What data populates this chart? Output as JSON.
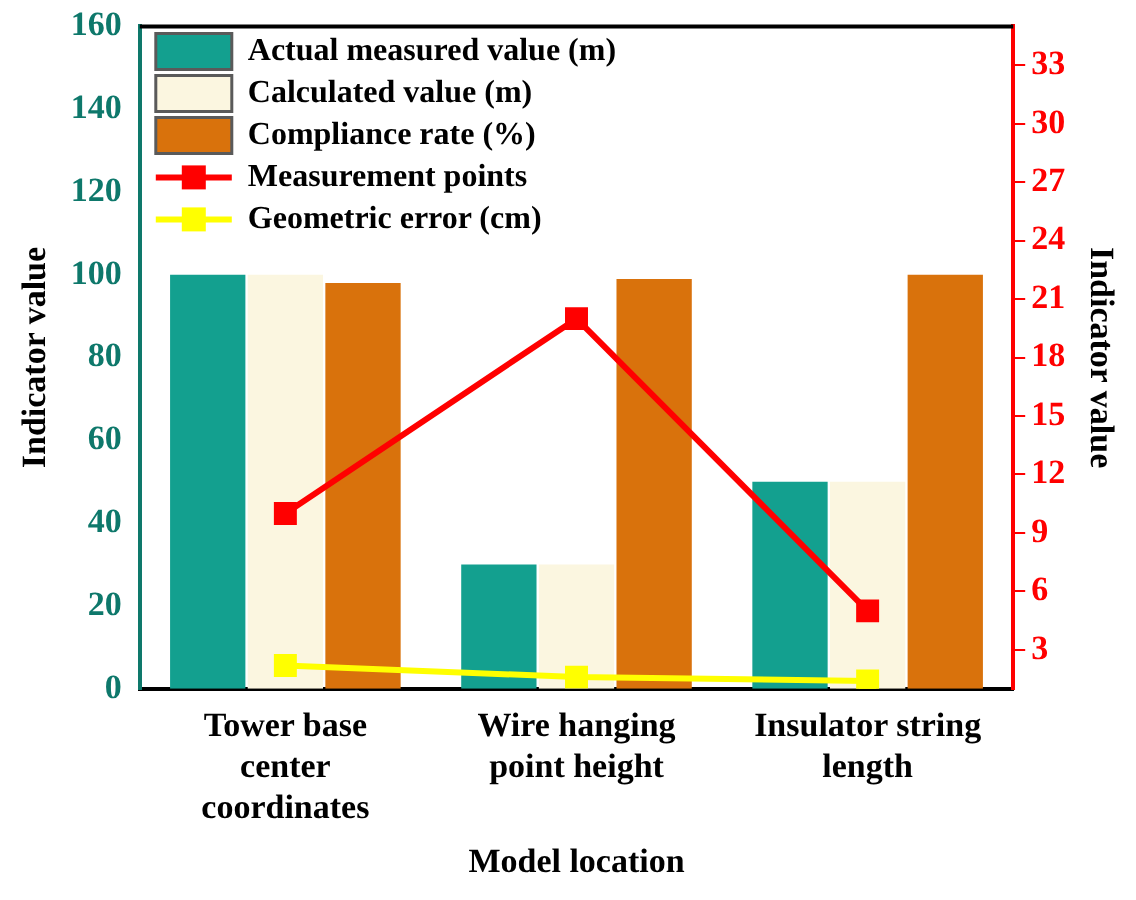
{
  "chart_data": {
    "type": "bar",
    "xlabel": "Model location",
    "ylabel": "Indicator value",
    "y2label": "Indicator value",
    "categories": [
      "Tower base center coordinates",
      "Wire hanging point height",
      "Insulator string length"
    ],
    "series": [
      {
        "name": "Actual measured value (m)",
        "color": "#13a08f",
        "values": [
          100,
          30,
          50
        ]
      },
      {
        "name": "Calculated value (m)",
        "color": "#fbf6e0",
        "values": [
          100,
          30,
          50
        ]
      },
      {
        "name": "Compliance rate (%)",
        "color": "#d9720c",
        "values": [
          98,
          99,
          100
        ]
      },
      {
        "name": "Measurement points",
        "type": "line",
        "axis": "y2",
        "color": "#ff0000",
        "values": [
          10,
          20,
          5
        ]
      },
      {
        "name": "Geometric error (cm)",
        "type": "line",
        "axis": "y2",
        "color": "#ffff00",
        "values": [
          2.2,
          1.6,
          1.4
        ]
      }
    ],
    "ylim": [
      0,
      160
    ],
    "yticks": [
      0,
      20,
      40,
      60,
      80,
      100,
      120,
      140,
      160
    ],
    "y2lim": [
      1,
      35
    ],
    "y2ticks": [
      3,
      6,
      9,
      12,
      15,
      18,
      21,
      24,
      27,
      30,
      33
    ],
    "marker": "square",
    "grid": false,
    "legend": "top left"
  }
}
